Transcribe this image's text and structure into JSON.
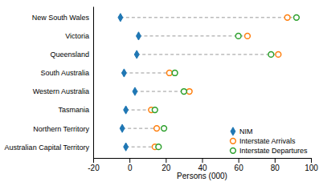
{
  "chart_data": {
    "type": "dot",
    "orientation": "horizontal",
    "categories": [
      "New South Wales",
      "Victoria",
      "Queensland",
      "South Australia",
      "Western Australia",
      "Tasmania",
      "Northern Territory",
      "Australian Capital Territory"
    ],
    "series": [
      {
        "name": "NIM",
        "marker": "diamond",
        "values": [
          -5,
          5,
          4,
          -3,
          3,
          -2,
          -4,
          -2
        ]
      },
      {
        "name": "Interstate Arrivals",
        "marker": "circle",
        "values": [
          87,
          65,
          82,
          22,
          33,
          12,
          15,
          14
        ]
      },
      {
        "name": "Interstate Departures",
        "marker": "circle",
        "values": [
          92,
          60,
          78,
          25,
          30,
          14,
          19,
          16
        ]
      }
    ],
    "xlabel": "Persons (000)",
    "xlim": [
      -20,
      100
    ],
    "xticks": [
      -20,
      0,
      20,
      40,
      60,
      80,
      100
    ],
    "line_style": "dashed",
    "legend": "lower right",
    "grid": false
  }
}
